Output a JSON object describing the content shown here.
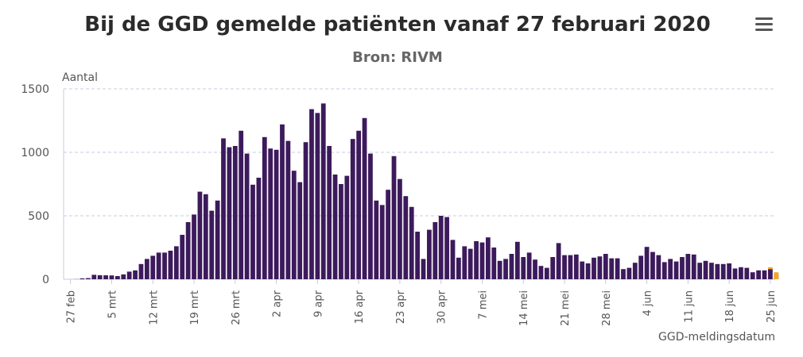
{
  "header": {
    "title": "Bij de GGD gemelde patiënten vanaf 27 februari 2020",
    "subtitle": "Bron: RIVM",
    "menu_icon": "hamburger-menu-icon"
  },
  "colors": {
    "bar": "#3c1a5c",
    "highlight": "#f5a623",
    "grid": "#c5cce0",
    "axis_text": "#555555"
  },
  "chart_data": {
    "type": "bar",
    "title": "Bij de GGD gemelde patiënten vanaf 27 februari 2020",
    "subtitle": "Bron: RIVM",
    "ylabel": "Aantal",
    "xlabel": "GGD-meldingsdatum",
    "ylim": [
      0,
      1500
    ],
    "yticks": [
      0,
      500,
      1000,
      1500
    ],
    "grid": true,
    "xtick_labels": [
      "27 feb",
      "5 mrt",
      "12 mrt",
      "19 mrt",
      "26 mrt",
      "2 apr",
      "9 apr",
      "16 apr",
      "23 apr",
      "30 apr",
      "7 mei",
      "14 mei",
      "21 mei",
      "28 mei",
      "4 jun",
      "11 jun",
      "18 jun",
      "25 jun"
    ],
    "start_date": "2020-02-27",
    "values": [
      0,
      1,
      7,
      9,
      35,
      32,
      31,
      30,
      25,
      38,
      60,
      70,
      120,
      160,
      185,
      210,
      210,
      225,
      260,
      350,
      450,
      510,
      690,
      670,
      540,
      620,
      1110,
      1040,
      1050,
      1170,
      990,
      745,
      800,
      1120,
      1030,
      1020,
      1220,
      1090,
      855,
      765,
      1080,
      1340,
      1310,
      1385,
      1050,
      825,
      750,
      815,
      1105,
      1170,
      1270,
      990,
      620,
      585,
      705,
      970,
      790,
      655,
      570,
      375,
      160,
      390,
      450,
      500,
      490,
      310,
      170,
      260,
      240,
      300,
      290,
      330,
      250,
      145,
      160,
      200,
      295,
      175,
      210,
      155,
      105,
      90,
      175,
      285,
      190,
      190,
      195,
      140,
      125,
      170,
      180,
      200,
      165,
      165,
      80,
      90,
      130,
      185,
      255,
      215,
      190,
      135,
      160,
      140,
      175,
      200,
      195,
      130,
      145,
      130,
      120,
      120,
      125,
      85,
      95,
      90,
      55,
      70,
      70,
      80,
      45
    ],
    "highlight_series": {
      "name": "",
      "values_last": [
        95,
        55
      ]
    }
  }
}
